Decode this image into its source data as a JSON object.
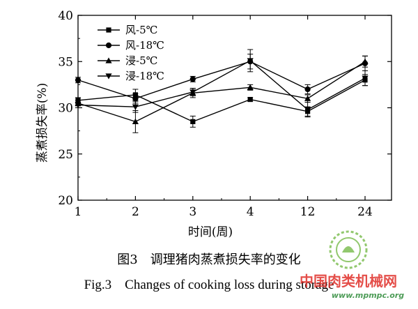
{
  "chart_data": {
    "type": "line",
    "title": "",
    "xlabel": "时间(周)",
    "ylabel": "蒸煮损失率(%)",
    "categories": [
      "1",
      "2",
      "3",
      "4",
      "12",
      "24"
    ],
    "ylim": [
      20,
      40
    ],
    "yticks": [
      20,
      25,
      30,
      35,
      40
    ],
    "grid": false,
    "legend_position": "top-left",
    "series": [
      {
        "name": "风-5℃",
        "marker": "square",
        "values": [
          30.8,
          31.4,
          28.5,
          30.9,
          29.6,
          33.0
        ],
        "errors": [
          0.3,
          0.6,
          0.6,
          0.2,
          0.5,
          0.6
        ]
      },
      {
        "name": "风-18℃",
        "marker": "circle",
        "values": [
          33.0,
          31.0,
          33.1,
          35.0,
          32.0,
          34.8
        ],
        "errors": [
          0.3,
          0.5,
          0.3,
          0.8,
          0.5,
          0.8
        ]
      },
      {
        "name": "浸-5℃",
        "marker": "triangle-up",
        "values": [
          30.5,
          28.5,
          31.6,
          32.2,
          31.0,
          35.0
        ],
        "errors": [
          0.3,
          1.2,
          0.5,
          0.3,
          0.4,
          0.6
        ]
      },
      {
        "name": "浸-18℃",
        "marker": "triangle-down",
        "values": [
          30.3,
          30.1,
          31.7,
          35.1,
          29.8,
          33.2
        ],
        "errors": [
          0.3,
          0.6,
          0.4,
          1.2,
          0.8,
          0.8
        ]
      }
    ]
  },
  "caption": {
    "zh": "图3　调理猪肉蒸煮损失率的变化",
    "en": "Fig.3　Changes of cooking loss during storage"
  },
  "watermark": {
    "text": "中国肉类机械网",
    "url": "www.mpmpc.org"
  }
}
